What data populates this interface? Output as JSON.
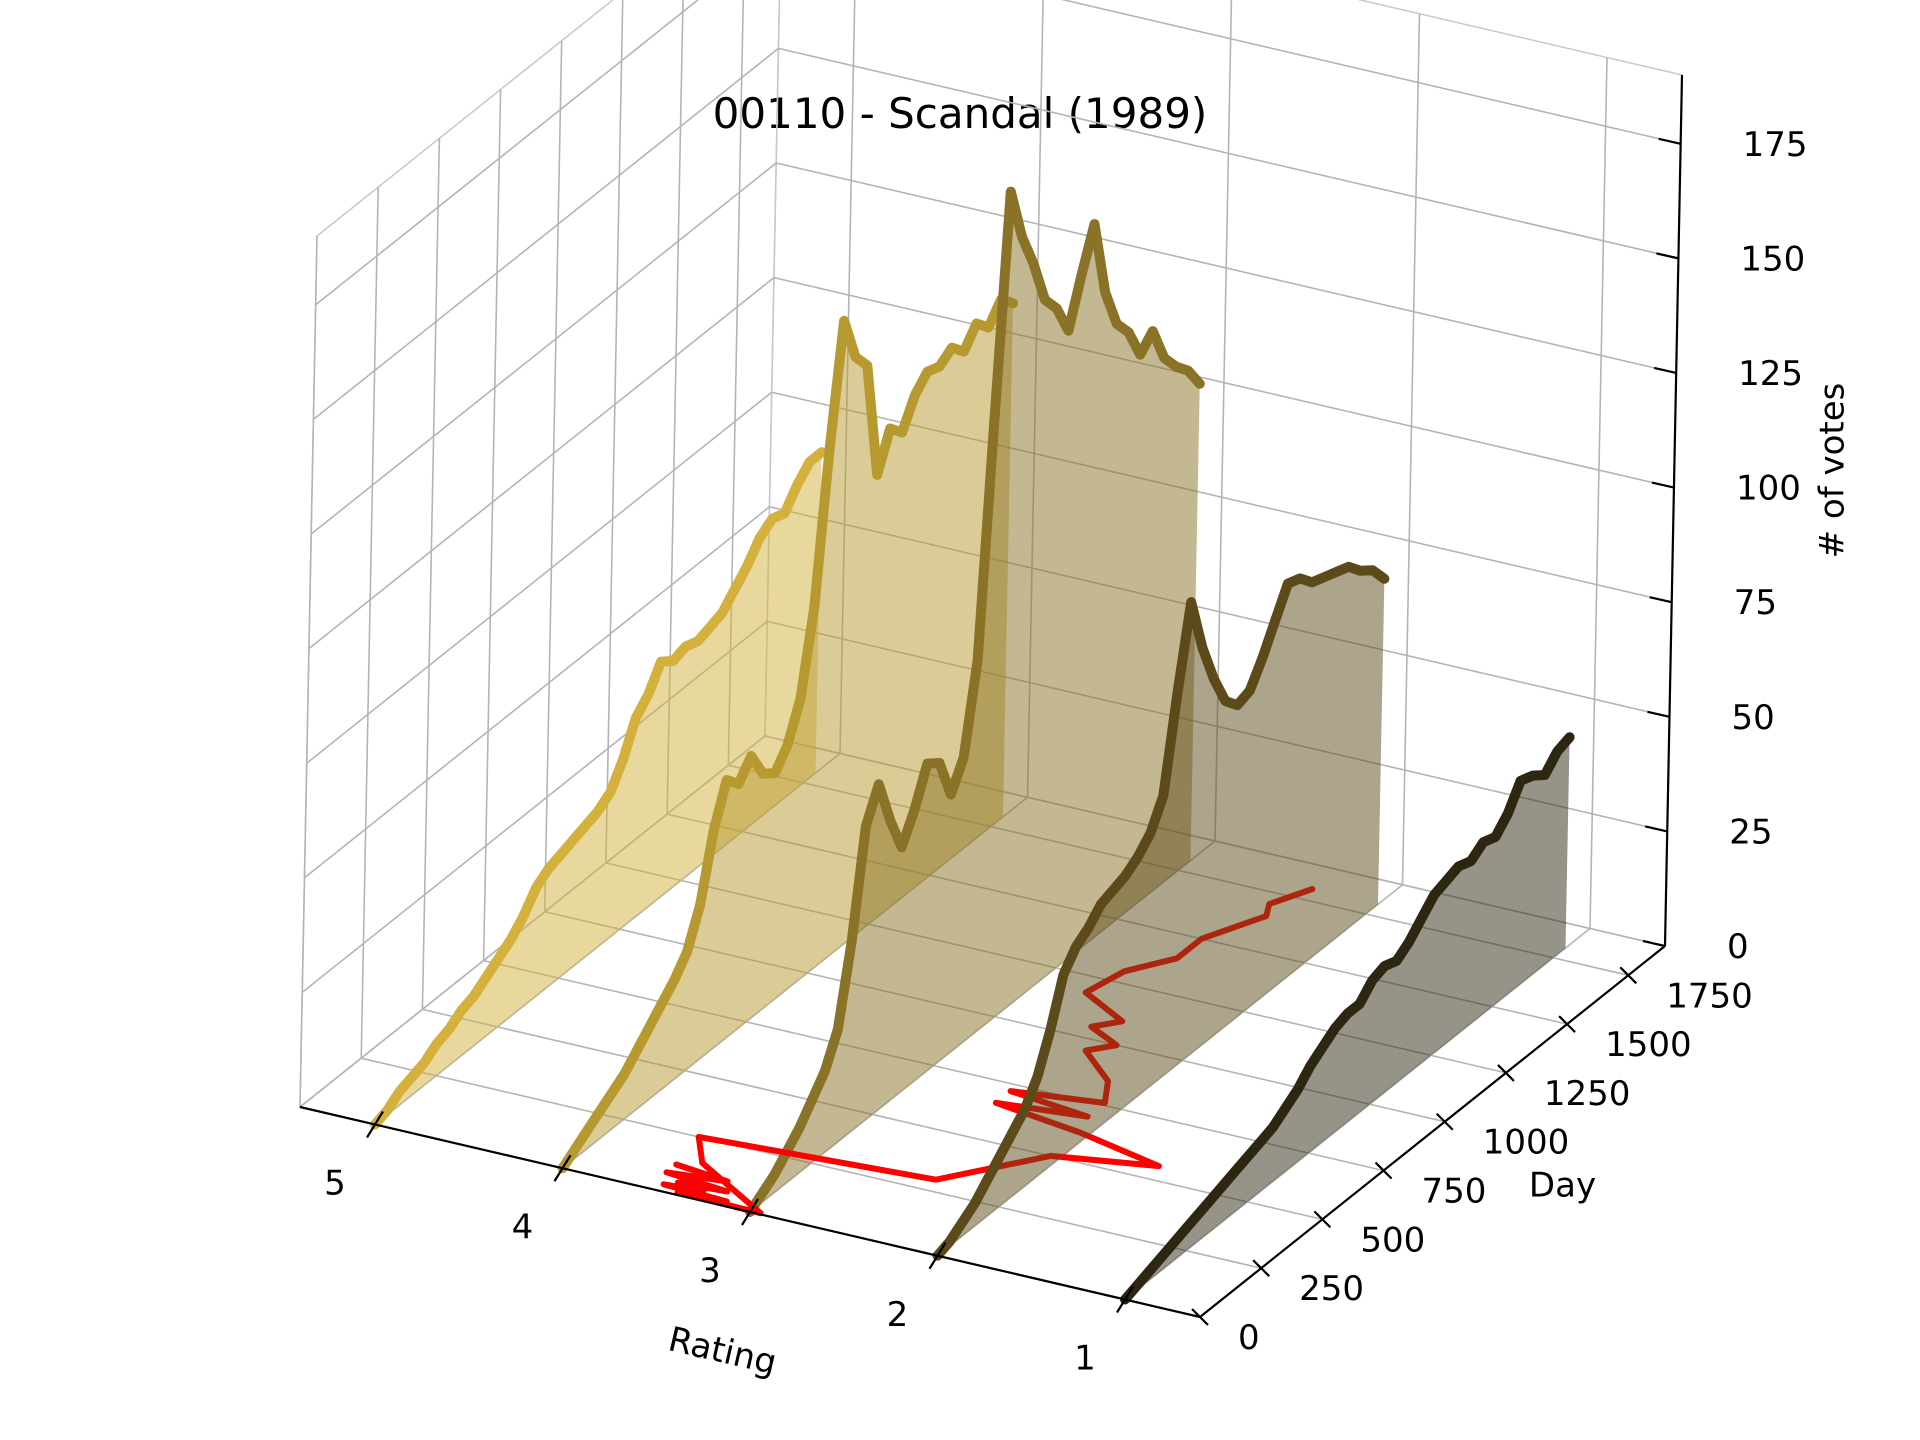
{
  "chart_data": {
    "type": "line",
    "projection": "3d",
    "title": "00110 - Scandal (1989)",
    "xlabel": "Rating",
    "ylabel": "Day",
    "zlabel": "# of votes",
    "x_ticks": [
      "5",
      "4",
      "3",
      "2",
      "1"
    ],
    "y_ticks": [
      "0",
      "250",
      "500",
      "750",
      "1000",
      "1250",
      "1500",
      "1750"
    ],
    "z_ticks": [
      "0",
      "25",
      "50",
      "75",
      "100",
      "125",
      "150",
      "175"
    ],
    "xlim": [
      0.6,
      5.4
    ],
    "ylim": [
      0,
      1900
    ],
    "zlim": [
      0,
      190
    ],
    "grid": true,
    "series": [
      {
        "rating": 5,
        "color": "#d4b13c",
        "x": [
          0,
          50,
          100,
          150,
          200,
          250,
          300,
          350,
          400,
          450,
          500,
          550,
          600,
          650,
          700,
          750,
          800,
          850,
          900,
          950,
          1000,
          1050,
          1100,
          1150,
          1200,
          1250,
          1300,
          1350,
          1400,
          1450,
          1500,
          1550,
          1600,
          1650,
          1700,
          1750,
          1800
        ],
        "values": [
          0,
          1,
          3,
          4,
          5,
          7,
          8,
          10,
          11,
          13,
          15,
          17,
          20,
          24,
          26,
          27,
          28,
          29,
          30,
          32,
          37,
          44,
          47,
          52,
          50,
          51,
          50,
          51,
          52,
          55,
          58,
          62,
          64,
          63,
          67,
          70,
          70
        ]
      },
      {
        "rating": 4,
        "color": "#b79a2f",
        "x": [
          0,
          50,
          100,
          150,
          200,
          250,
          300,
          350,
          400,
          450,
          500,
          550,
          600,
          650,
          700,
          750,
          800,
          850,
          900,
          950,
          1000,
          1050,
          1100,
          1150,
          1200,
          1250,
          1300,
          1350,
          1400,
          1450,
          1500,
          1550,
          1600,
          1650,
          1700,
          1750,
          1800
        ],
        "values": [
          0,
          2,
          4,
          6,
          8,
          10,
          13,
          16,
          19,
          22,
          26,
          34,
          48,
          57,
          54,
          58,
          52,
          50,
          54,
          62,
          80,
          112,
          138,
          128,
          124,
          98,
          106,
          103,
          109,
          112,
          111,
          113,
          110,
          114,
          111,
          115,
          112
        ]
      },
      {
        "rating": 3,
        "color": "#8a7226",
        "x": [
          0,
          50,
          100,
          150,
          200,
          250,
          300,
          350,
          400,
          450,
          500,
          550,
          600,
          650,
          700,
          750,
          800,
          850,
          900,
          950,
          1000,
          1050,
          1100,
          1150,
          1200,
          1250,
          1300,
          1350,
          1400,
          1450,
          1500,
          1550,
          1600,
          1650,
          1700,
          1750,
          1800
        ],
        "values": [
          0,
          2,
          4,
          7,
          10,
          14,
          18,
          25,
          42,
          65,
          72,
          62,
          54,
          60,
          68,
          66,
          57,
          63,
          82,
          132,
          180,
          168,
          160,
          150,
          146,
          139,
          149,
          158,
          141,
          132,
          128,
          121,
          124,
          116,
          112,
          109,
          104
        ]
      },
      {
        "rating": 2,
        "color": "#5c4a1a",
        "x": [
          0,
          50,
          100,
          150,
          200,
          250,
          300,
          350,
          400,
          450,
          500,
          550,
          600,
          650,
          700,
          750,
          800,
          850,
          900,
          950,
          1000,
          1050,
          1100,
          1150,
          1200,
          1250,
          1300,
          1350,
          1400,
          1450,
          1500,
          1550,
          1600,
          1650,
          1700,
          1750,
          1800
        ],
        "values": [
          0,
          1,
          3,
          5,
          8,
          11,
          14,
          17,
          22,
          30,
          40,
          44,
          46,
          49,
          50,
          51,
          53,
          56,
          62,
          82,
          100,
          88,
          79,
          72,
          69,
          70,
          75,
          81,
          87,
          86,
          83,
          82,
          81,
          80,
          77,
          75,
          71
        ]
      },
      {
        "rating": 1,
        "color": "#2d2712",
        "x": [
          0,
          50,
          100,
          150,
          200,
          250,
          300,
          350,
          400,
          450,
          500,
          550,
          600,
          650,
          700,
          750,
          800,
          850,
          900,
          950,
          1000,
          1050,
          1100,
          1150,
          1200,
          1250,
          1300,
          1350,
          1400,
          1450,
          1500,
          1550,
          1600,
          1650,
          1700,
          1750,
          1800
        ],
        "values": [
          0,
          1,
          2,
          3,
          4,
          5,
          6,
          7,
          8,
          9,
          10,
          11,
          12,
          14,
          16,
          19,
          21,
          23,
          24,
          24,
          27,
          28,
          27,
          29,
          32,
          35,
          36,
          37,
          36,
          38,
          37,
          40,
          45,
          44,
          42,
          45,
          46
        ]
      }
    ],
    "mean_line": {
      "color": "#ff0000",
      "points": [
        {
          "day": 120,
          "rating": 3.55
        },
        {
          "day": 100,
          "rating": 3.25
        },
        {
          "day": 80,
          "rating": 3.55
        },
        {
          "day": 60,
          "rating": 3.2
        },
        {
          "day": 50,
          "rating": 3.45
        },
        {
          "day": 40,
          "rating": 3.3
        },
        {
          "day": 30,
          "rating": 3.5
        },
        {
          "day": 20,
          "rating": 3.15
        },
        {
          "day": 10,
          "rating": 3.4
        },
        {
          "day": 5,
          "rating": 2.95
        },
        {
          "day": 150,
          "rating": 3.45
        },
        {
          "day": 250,
          "rating": 3.6
        },
        {
          "day": 300,
          "rating": 2.4
        },
        {
          "day": 500,
          "rating": 2.05
        },
        {
          "day": 560,
          "rating": 1.55
        },
        {
          "day": 620,
          "rating": 2.05
        },
        {
          "day": 660,
          "rating": 2.55
        },
        {
          "day": 690,
          "rating": 2.1
        },
        {
          "day": 720,
          "rating": 2.55
        },
        {
          "day": 760,
          "rating": 2.1
        },
        {
          "day": 850,
          "rating": 2.2
        },
        {
          "day": 950,
          "rating": 2.45
        },
        {
          "day": 1000,
          "rating": 2.35
        },
        {
          "day": 1050,
          "rating": 2.55
        },
        {
          "day": 1100,
          "rating": 2.45
        },
        {
          "day": 1180,
          "rating": 2.75
        },
        {
          "day": 1300,
          "rating": 2.7
        },
        {
          "day": 1400,
          "rating": 2.55
        },
        {
          "day": 1500,
          "rating": 2.55
        },
        {
          "day": 1600,
          "rating": 2.45
        },
        {
          "day": 1650,
          "rating": 2.4
        },
        {
          "day": 1700,
          "rating": 2.45
        },
        {
          "day": 1750,
          "rating": 2.4
        },
        {
          "day": 1800,
          "rating": 2.35
        }
      ]
    }
  }
}
